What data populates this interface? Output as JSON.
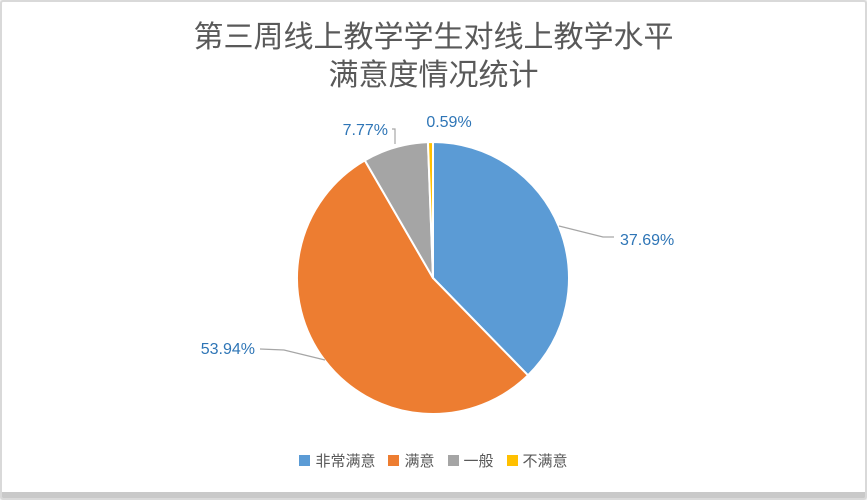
{
  "window": {
    "background": "#ffffff",
    "border_color": "#d9d9d9",
    "bottom_edge_color": "#c9c9c9"
  },
  "chart_data": {
    "type": "pie",
    "title": "第三周线上教学学生对线上教学水平\n满意度情况统计",
    "title_color": "#595959",
    "categories": [
      "非常满意",
      "满意",
      "一般",
      "不满意"
    ],
    "values": [
      37.69,
      53.94,
      7.77,
      0.59
    ],
    "labels": [
      "37.69%",
      "53.94%",
      "7.77%",
      "0.59%"
    ],
    "colors": [
      "#5B9BD5",
      "#ED7D31",
      "#A5A5A5",
      "#FFC000"
    ],
    "label_color": "#2E75B6",
    "leader_line_color": "#A6A6A6",
    "slice_border_color": "#FFFFFF",
    "legend_position": "bottom",
    "legend_text_color": "#595959",
    "start_angle": 0,
    "direction": "clockwise"
  }
}
